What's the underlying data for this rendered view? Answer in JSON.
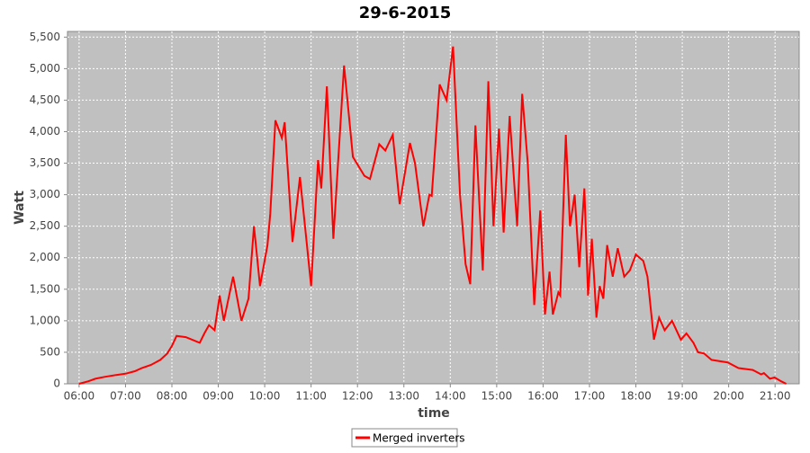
{
  "chart_data": {
    "type": "line",
    "title": "29-6-2015",
    "x_label": "time",
    "y_label": "Watt",
    "xlim": [
      5.75,
      21.52
    ],
    "ylim": [
      0,
      5590
    ],
    "xticks": [
      {
        "value": 6,
        "label": "06:00"
      },
      {
        "value": 7,
        "label": "07:00"
      },
      {
        "value": 8,
        "label": "08:00"
      },
      {
        "value": 9,
        "label": "09:00"
      },
      {
        "value": 10,
        "label": "10:00"
      },
      {
        "value": 11,
        "label": "11:00"
      },
      {
        "value": 12,
        "label": "12:00"
      },
      {
        "value": 13,
        "label": "13:00"
      },
      {
        "value": 14,
        "label": "14:00"
      },
      {
        "value": 15,
        "label": "15:00"
      },
      {
        "value": 16,
        "label": "16:00"
      },
      {
        "value": 17,
        "label": "17:00"
      },
      {
        "value": 18,
        "label": "18:00"
      },
      {
        "value": 19,
        "label": "19:00"
      },
      {
        "value": 20,
        "label": "20:00"
      },
      {
        "value": 21,
        "label": "21:00"
      }
    ],
    "yticks": [
      0,
      500,
      {
        "value": 1000,
        "label": "1,000"
      },
      {
        "value": 1500,
        "label": "1,500"
      },
      {
        "value": 2000,
        "label": "2,000"
      },
      {
        "value": 2500,
        "label": "2,500"
      },
      {
        "value": 3000,
        "label": "3,000"
      },
      {
        "value": 3500,
        "label": "3,500"
      },
      {
        "value": 4000,
        "label": "4,000"
      },
      {
        "value": 4500,
        "label": "4,500"
      },
      {
        "value": 5000,
        "label": "5,000"
      },
      {
        "value": 5500,
        "label": "5,500"
      }
    ],
    "grid": true,
    "legend": "bottom",
    "x": [
      6.0,
      6.2,
      6.35,
      6.55,
      6.8,
      7.0,
      7.2,
      7.35,
      7.55,
      7.75,
      7.9,
      8.0,
      8.1,
      8.3,
      8.5,
      8.6,
      8.7,
      8.8,
      8.92,
      9.03,
      9.12,
      9.32,
      9.5,
      9.65,
      9.77,
      9.9,
      10.06,
      10.12,
      10.23,
      10.37,
      10.43,
      10.6,
      10.76,
      11.0,
      11.15,
      11.22,
      11.34,
      11.48,
      11.71,
      11.9,
      12.15,
      12.27,
      12.47,
      12.6,
      12.76,
      12.91,
      13.13,
      13.24,
      13.42,
      13.55,
      13.6,
      13.77,
      13.92,
      14.06,
      14.21,
      14.33,
      14.43,
      14.54,
      14.7,
      14.82,
      14.93,
      15.05,
      15.15,
      15.28,
      15.44,
      15.55,
      15.67,
      15.81,
      15.94,
      16.04,
      16.14,
      16.21,
      16.33,
      16.37,
      16.49,
      16.58,
      16.68,
      16.78,
      16.89,
      16.97,
      17.05,
      17.15,
      17.22,
      17.3,
      17.38,
      17.5,
      17.61,
      17.75,
      17.87,
      18.0,
      18.16,
      18.25,
      18.39,
      18.5,
      18.62,
      18.78,
      18.97,
      19.09,
      19.24,
      19.34,
      19.47,
      19.63,
      19.98,
      20.21,
      20.52,
      20.7,
      20.76,
      20.89,
      20.99,
      21.13,
      21.24
    ],
    "series": [
      {
        "name": "Merged inverters",
        "color": "#ff0000",
        "values": [
          0,
          40,
          80,
          110,
          140,
          160,
          200,
          250,
          300,
          380,
          480,
          600,
          760,
          740,
          680,
          650,
          800,
          930,
          850,
          1400,
          1000,
          1700,
          1000,
          1350,
          2500,
          1550,
          2200,
          2700,
          4180,
          3900,
          4150,
          2250,
          3280,
          1550,
          3550,
          3100,
          4720,
          2300,
          5050,
          3600,
          3300,
          3250,
          3800,
          3700,
          3950,
          2850,
          3820,
          3500,
          2500,
          3000,
          2980,
          4750,
          4500,
          5350,
          3000,
          1900,
          1580,
          4100,
          1800,
          4800,
          2500,
          4050,
          2400,
          4250,
          2500,
          4600,
          3500,
          1250,
          2750,
          1100,
          1780,
          1100,
          1450,
          1400,
          3950,
          2500,
          3000,
          1850,
          3100,
          1400,
          2300,
          1050,
          1550,
          1350,
          2200,
          1700,
          2150,
          1700,
          1800,
          2050,
          1950,
          1700,
          700,
          1050,
          850,
          1000,
          700,
          800,
          650,
          500,
          480,
          380,
          340,
          250,
          220,
          150,
          170,
          80,
          100,
          40,
          0
        ]
      }
    ]
  }
}
